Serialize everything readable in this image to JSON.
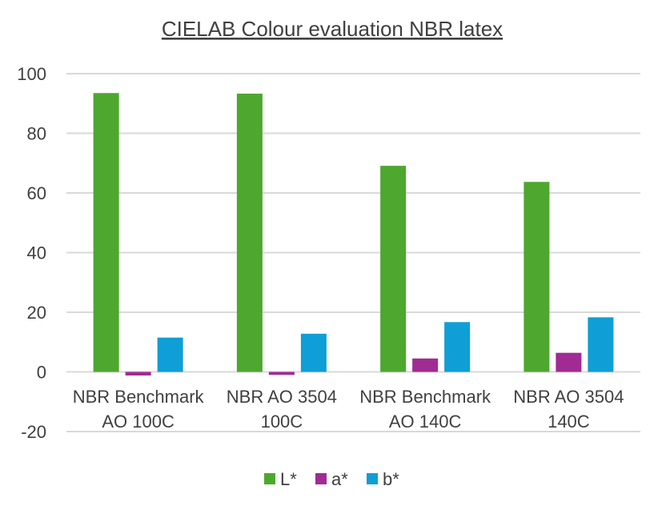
{
  "chart_data": {
    "type": "bar",
    "title": "CIELAB Colour evaluation NBR latex",
    "xlabel": "",
    "ylabel": "",
    "ylim": [
      -20,
      100
    ],
    "yticks": [
      "100",
      "80",
      "60",
      "40",
      "20",
      "0",
      "-20"
    ],
    "grid": true,
    "legend_position": "bottom",
    "categories": [
      [
        "NBR Benchmark",
        "AO 100C"
      ],
      [
        "NBR AO 3504",
        "100C"
      ],
      [
        "NBR Benchmark",
        "AO 140C"
      ],
      [
        "NBR AO 3504",
        "140C"
      ]
    ],
    "series": [
      {
        "name": "L*",
        "color": "#4ea72e",
        "values": [
          93.5,
          93.3,
          69.1,
          63.7
        ]
      },
      {
        "name": "a*",
        "color": "#a02b93",
        "values": [
          -1.2,
          -1.0,
          4.5,
          6.4
        ]
      },
      {
        "name": "b*",
        "color": "#0f9ed5",
        "values": [
          11.5,
          12.8,
          16.7,
          18.3
        ]
      }
    ]
  }
}
